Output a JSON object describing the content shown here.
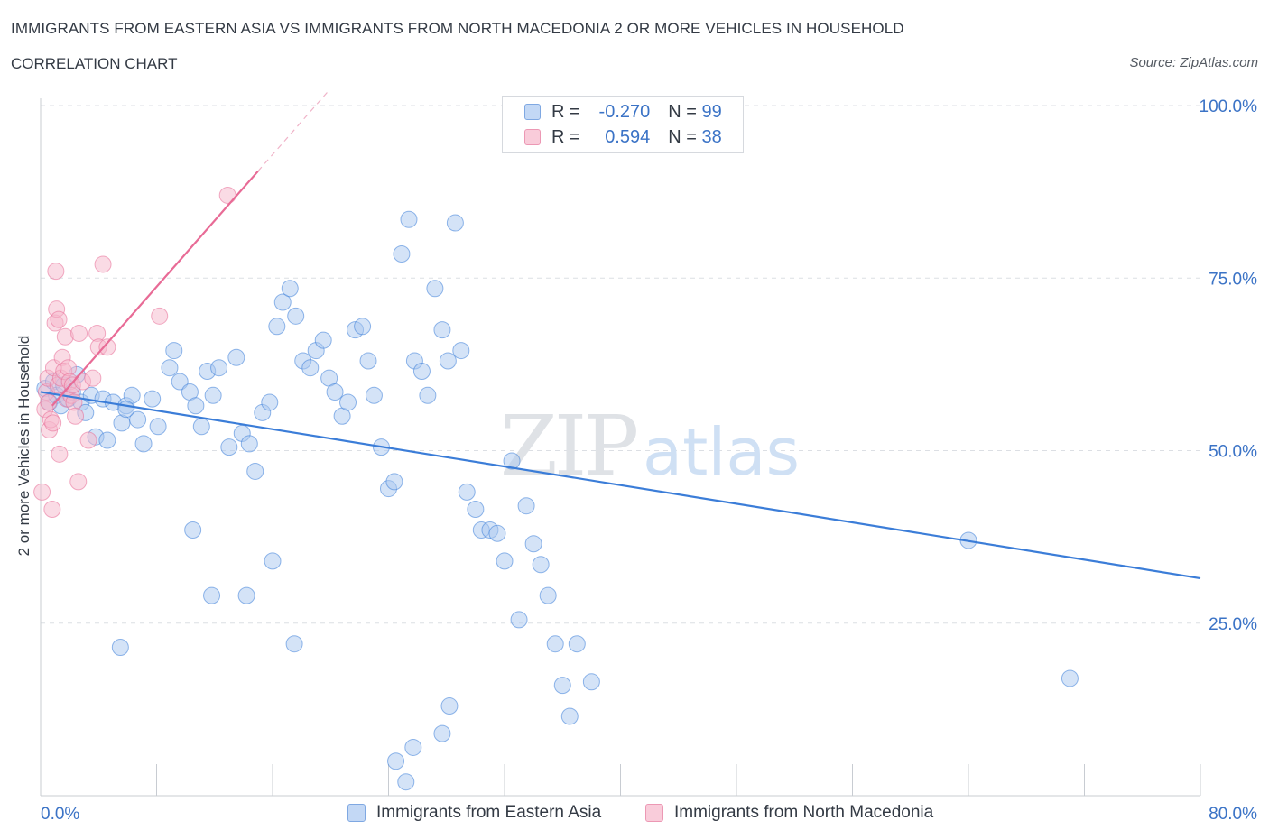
{
  "header": {
    "title": "IMMIGRANTS FROM EASTERN ASIA VS IMMIGRANTS FROM NORTH MACEDONIA 2 OR MORE VEHICLES IN HOUSEHOLD",
    "subtitle": "CORRELATION CHART",
    "source": "Source: ZipAtlas.com"
  },
  "legend_top": {
    "rows": [
      {
        "r_label": "R =",
        "r_value": "-0.270",
        "n_label": "N =",
        "n_value": "99"
      },
      {
        "r_label": "R =",
        "r_value": "0.594",
        "n_label": "N =",
        "n_value": "38"
      }
    ]
  },
  "colors": {
    "blue": "#3b7dd8",
    "blue_fill": "#aac8f0",
    "pink": "#e86b96",
    "pink_fill": "#f5b8cb",
    "grid": "#dcdfe4",
    "axis_label": "#3b73c6"
  },
  "chart_data": {
    "type": "scatter",
    "xlabel": "",
    "ylabel": "2 or more Vehicles in Household",
    "xlim": [
      0,
      80
    ],
    "ylim": [
      0,
      100
    ],
    "x_ticks": [
      "0.0%",
      "80.0%"
    ],
    "y_ticks": [
      {
        "value": 25,
        "label": "25.0%"
      },
      {
        "value": 50,
        "label": "50.0%"
      },
      {
        "value": 75,
        "label": "75.0%"
      },
      {
        "value": 100,
        "label": "100.0%"
      }
    ],
    "legend_position": "bottom",
    "watermark": "ZIPatlas",
    "series": [
      {
        "name": "Immigrants from Eastern Asia",
        "color": "#3b7dd8",
        "fill": "#aac8f0",
        "trend": {
          "x": [
            0,
            80
          ],
          "y": [
            58.5,
            31.5
          ]
        },
        "points": [
          [
            0.3,
            59.0
          ],
          [
            0.6,
            57.0
          ],
          [
            0.9,
            60.0
          ],
          [
            1.1,
            58.0
          ],
          [
            1.4,
            56.5
          ],
          [
            1.6,
            59.5
          ],
          [
            1.9,
            57.5
          ],
          [
            2.2,
            58.5
          ],
          [
            2.5,
            61.0
          ],
          [
            2.8,
            57.0
          ],
          [
            3.1,
            55.5
          ],
          [
            3.5,
            58.0
          ],
          [
            3.8,
            52.0
          ],
          [
            4.3,
            57.5
          ],
          [
            4.6,
            51.5
          ],
          [
            5.0,
            57.0
          ],
          [
            5.6,
            54.0
          ],
          [
            5.9,
            56.5
          ],
          [
            6.3,
            58.0
          ],
          [
            6.7,
            54.5
          ],
          [
            7.1,
            51.0
          ],
          [
            7.7,
            57.5
          ],
          [
            8.1,
            53.5
          ],
          [
            8.9,
            62.0
          ],
          [
            9.2,
            64.5
          ],
          [
            9.6,
            60.0
          ],
          [
            10.3,
            58.5
          ],
          [
            10.7,
            56.5
          ],
          [
            11.1,
            53.5
          ],
          [
            11.5,
            61.5
          ],
          [
            11.9,
            58.0
          ],
          [
            12.3,
            62.0
          ],
          [
            13.0,
            50.5
          ],
          [
            13.5,
            63.5
          ],
          [
            13.9,
            52.5
          ],
          [
            14.4,
            51.0
          ],
          [
            14.8,
            47.0
          ],
          [
            15.3,
            55.5
          ],
          [
            15.8,
            57.0
          ],
          [
            16.3,
            68.0
          ],
          [
            16.7,
            71.5
          ],
          [
            17.2,
            73.5
          ],
          [
            17.6,
            69.5
          ],
          [
            18.1,
            63.0
          ],
          [
            18.6,
            62.0
          ],
          [
            19.0,
            64.5
          ],
          [
            19.5,
            66.0
          ],
          [
            19.9,
            60.5
          ],
          [
            20.3,
            58.5
          ],
          [
            20.8,
            55.0
          ],
          [
            21.2,
            57.0
          ],
          [
            21.7,
            67.5
          ],
          [
            22.2,
            68.0
          ],
          [
            22.6,
            63.0
          ],
          [
            23.0,
            58.0
          ],
          [
            23.5,
            50.5
          ],
          [
            24.0,
            44.5
          ],
          [
            24.4,
            45.5
          ],
          [
            24.9,
            78.5
          ],
          [
            25.4,
            83.5
          ],
          [
            25.8,
            63.0
          ],
          [
            26.3,
            61.5
          ],
          [
            26.7,
            58.0
          ],
          [
            27.2,
            73.5
          ],
          [
            27.7,
            67.5
          ],
          [
            28.1,
            63.0
          ],
          [
            28.6,
            83.0
          ],
          [
            29.0,
            64.5
          ],
          [
            29.4,
            44.0
          ],
          [
            30.0,
            41.5
          ],
          [
            30.4,
            38.5
          ],
          [
            31.0,
            38.5
          ],
          [
            31.5,
            38.0
          ],
          [
            32.0,
            34.0
          ],
          [
            32.5,
            48.5
          ],
          [
            33.0,
            25.5
          ],
          [
            33.5,
            42.0
          ],
          [
            34.0,
            36.5
          ],
          [
            34.5,
            33.5
          ],
          [
            35.0,
            29.0
          ],
          [
            35.5,
            22.0
          ],
          [
            36.0,
            16.0
          ],
          [
            36.5,
            11.5
          ],
          [
            37.0,
            22.0
          ],
          [
            38.0,
            16.5
          ],
          [
            16.0,
            34.0
          ],
          [
            17.5,
            22.0
          ],
          [
            10.5,
            38.5
          ],
          [
            11.8,
            29.0
          ],
          [
            14.2,
            29.0
          ],
          [
            5.5,
            21.5
          ],
          [
            28.2,
            13.0
          ],
          [
            27.7,
            9.0
          ],
          [
            25.7,
            7.0
          ],
          [
            25.2,
            2.0
          ],
          [
            24.5,
            5.0
          ],
          [
            64.0,
            37.0
          ],
          [
            71.0,
            17.0
          ],
          [
            5.9,
            56.0
          ]
        ]
      },
      {
        "name": "Immigrants from North Macedonia",
        "color": "#e86b96",
        "fill": "#f5b8cb",
        "trend": {
          "x": [
            0.8,
            15.0
          ],
          "y": [
            56.5,
            90.5
          ]
        },
        "points": [
          [
            0.1,
            44.0
          ],
          [
            0.3,
            56.0
          ],
          [
            0.4,
            58.5
          ],
          [
            0.5,
            60.5
          ],
          [
            0.6,
            53.0
          ],
          [
            0.7,
            54.5
          ],
          [
            0.8,
            41.5
          ],
          [
            0.9,
            62.0
          ],
          [
            1.0,
            68.5
          ],
          [
            1.1,
            70.5
          ],
          [
            1.2,
            59.5
          ],
          [
            1.3,
            49.5
          ],
          [
            1.4,
            60.5
          ],
          [
            1.5,
            63.5
          ],
          [
            1.6,
            61.5
          ],
          [
            1.7,
            66.5
          ],
          [
            1.8,
            57.5
          ],
          [
            1.9,
            62.0
          ],
          [
            2.0,
            60.0
          ],
          [
            2.1,
            58.0
          ],
          [
            2.2,
            59.5
          ],
          [
            2.3,
            57.0
          ],
          [
            2.4,
            55.0
          ],
          [
            2.6,
            45.5
          ],
          [
            2.9,
            60.0
          ],
          [
            3.3,
            51.5
          ],
          [
            3.6,
            60.5
          ],
          [
            3.9,
            67.0
          ],
          [
            4.0,
            65.0
          ],
          [
            4.3,
            77.0
          ],
          [
            4.6,
            65.0
          ],
          [
            8.2,
            69.5
          ],
          [
            12.9,
            87.0
          ],
          [
            1.05,
            76.0
          ],
          [
            1.25,
            69.0
          ],
          [
            0.85,
            54.0
          ],
          [
            0.55,
            57.0
          ],
          [
            2.65,
            67.0
          ]
        ]
      }
    ]
  }
}
